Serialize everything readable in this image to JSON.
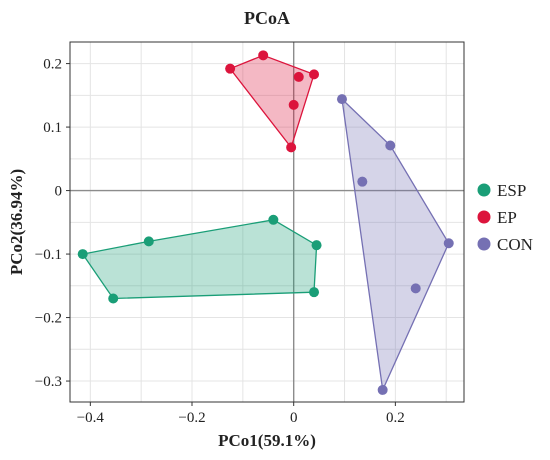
{
  "chart_data": {
    "type": "scatter",
    "title": "PCoA",
    "xlabel": "PCo1(59.1%)",
    "ylabel": "PCo2(36.94%)",
    "xlim": [
      -0.44,
      0.335
    ],
    "ylim": [
      -0.333,
      0.234
    ],
    "xticks": [
      -0.4,
      -0.2,
      0,
      0.2
    ],
    "xtick_labels": [
      "−0.4",
      "−0.2",
      "0",
      "0.2"
    ],
    "yticks": [
      -0.3,
      -0.2,
      -0.1,
      0,
      0.1,
      0.2
    ],
    "ytick_labels": [
      "−0.3",
      "−0.2",
      "−0.1",
      "0",
      "0.1",
      "0.2"
    ],
    "grid": true,
    "zero_lines": true,
    "convex_hulls": true,
    "legend_position": "right",
    "series": [
      {
        "name": "ESP",
        "color": "#1a9e77",
        "points": [
          {
            "x": -0.415,
            "y": -0.1
          },
          {
            "x": -0.285,
            "y": -0.08
          },
          {
            "x": -0.355,
            "y": -0.17
          },
          {
            "x": -0.04,
            "y": -0.046
          },
          {
            "x": 0.04,
            "y": -0.16
          },
          {
            "x": 0.045,
            "y": -0.086
          }
        ]
      },
      {
        "name": "EP",
        "color": "#dc143c",
        "points": [
          {
            "x": -0.125,
            "y": 0.192
          },
          {
            "x": -0.06,
            "y": 0.213
          },
          {
            "x": 0.01,
            "y": 0.179
          },
          {
            "x": 0.04,
            "y": 0.183
          },
          {
            "x": 0.0,
            "y": 0.135
          },
          {
            "x": -0.005,
            "y": 0.068
          }
        ]
      },
      {
        "name": "CON",
        "color": "#7570b3",
        "points": [
          {
            "x": 0.095,
            "y": 0.144
          },
          {
            "x": 0.19,
            "y": 0.071
          },
          {
            "x": 0.135,
            "y": 0.014
          },
          {
            "x": 0.305,
            "y": -0.083
          },
          {
            "x": 0.24,
            "y": -0.154
          },
          {
            "x": 0.175,
            "y": -0.314
          }
        ]
      }
    ]
  }
}
